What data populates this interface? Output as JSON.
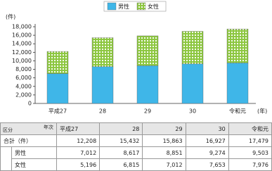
{
  "chart_data": {
    "type": "stacked-bar",
    "y_unit": "(件)",
    "x_unit": "(年)",
    "categories": [
      "平成27",
      "28",
      "29",
      "30",
      "令和元"
    ],
    "series": [
      {
        "name": "男性",
        "color": "#3fb6e8",
        "values": [
          7012,
          8617,
          8851,
          9274,
          9503
        ]
      },
      {
        "name": "女性",
        "color": "#8cc63f",
        "values": [
          5196,
          6815,
          7012,
          7653,
          7976
        ]
      }
    ],
    "ylim": [
      0,
      18000
    ],
    "yticks": [
      0,
      {
        "value": 2000,
        "label": "2,000"
      },
      {
        "value": 4000,
        "label": "4,000"
      },
      {
        "value": 6000,
        "label": "6,000"
      },
      {
        "value": 8000,
        "label": "8,000"
      },
      {
        "value": 10000,
        "label": "10,000"
      },
      {
        "value": 12000,
        "label": "12,000"
      },
      {
        "value": 14000,
        "label": "14,000"
      },
      {
        "value": 16000,
        "label": "16,000"
      },
      {
        "value": 18000,
        "label": "18,000"
      }
    ],
    "grid": false
  },
  "table": {
    "corner_top": "年次",
    "corner_bottom": "区分",
    "header": [
      "平成27",
      "28",
      "29",
      "30",
      "令和元"
    ],
    "rows": [
      {
        "label": "合計（件）",
        "cells": [
          "12,208",
          "15,432",
          "15,863",
          "16,927",
          "17,479"
        ]
      },
      {
        "label": "男性",
        "cells": [
          "7,012",
          "8,617",
          "8,851",
          "9,274",
          "9,503"
        ]
      },
      {
        "label": "女性",
        "cells": [
          "5,196",
          "6,815",
          "7,012",
          "7,653",
          "7,976"
        ]
      }
    ]
  }
}
